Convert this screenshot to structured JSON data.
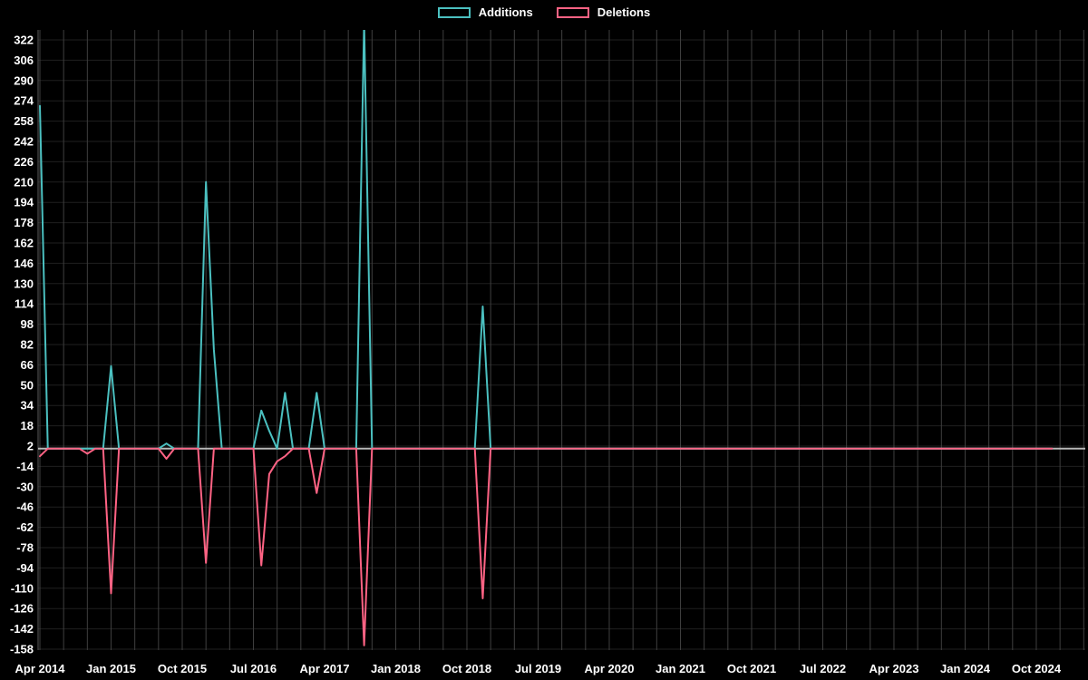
{
  "legend": {
    "items": [
      {
        "label": "Additions",
        "color": "#4bc0c0"
      },
      {
        "label": "Deletions",
        "color": "#ff6384"
      }
    ]
  },
  "chart_data": {
    "type": "line",
    "title": "",
    "legend_position": "top",
    "background_color": "#000000",
    "grid": {
      "vertical_interval_months": 3,
      "vertical_color": "#3f3f3f",
      "horizontal_color": "#1f1f1f",
      "zero_line_color": "#b8b8b8",
      "axis_line_color": "#5a5a5a"
    },
    "x_axis": {
      "start": "2014-04",
      "end": "2024-12",
      "tick_interval_months": 9,
      "tick_labels": [
        "Apr 2014",
        "Jan 2015",
        "Oct 2015",
        "Jul 2016",
        "Apr 2017",
        "Jan 2018",
        "Oct 2018",
        "Jul 2019",
        "Apr 2020",
        "Jan 2021",
        "Oct 2021",
        "Jul 2022",
        "Apr 2023",
        "Jan 2024",
        "Oct 2024"
      ]
    },
    "y_axis": {
      "min": -158,
      "max": 322,
      "tick_step": 16,
      "ticks": [
        322,
        306,
        290,
        274,
        258,
        242,
        226,
        210,
        194,
        178,
        162,
        146,
        130,
        114,
        98,
        82,
        66,
        50,
        34,
        18,
        2,
        -14,
        -30,
        -46,
        -62,
        -78,
        -94,
        -110,
        -126,
        -142,
        -158
      ]
    },
    "baseline_value": 0,
    "series": [
      {
        "name": "Additions",
        "color": "#4bc0c0",
        "points": {
          "2014-04": 270,
          "2015-01": 65,
          "2015-08": 4,
          "2016-01": 210,
          "2016-02": 78,
          "2016-08": 30,
          "2016-09": 14,
          "2016-11": 44,
          "2017-03": 44,
          "2017-09": 336,
          "2018-12": 112
        }
      },
      {
        "name": "Deletions",
        "color": "#ff6384",
        "points": {
          "2014-04": -6,
          "2014-10": -4,
          "2015-01": -114,
          "2015-08": -8,
          "2016-01": -90,
          "2016-08": -92,
          "2016-09": -20,
          "2016-10": -10,
          "2016-11": -6,
          "2017-03": -35,
          "2017-09": -155,
          "2018-12": -118
        }
      }
    ],
    "notes": "All months between 2014-04 and 2024-12 not listed in points have value 0. The 2017-09 Additions spike is clipped by the top of the plot area (value exceeds the 322 axis maximum)."
  }
}
